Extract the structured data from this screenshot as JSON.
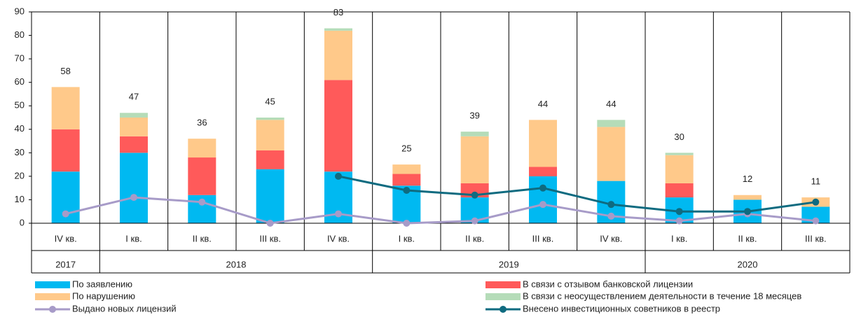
{
  "chart_data": {
    "type": "stacked_bar_line",
    "categories": [
      "IV кв.",
      "I кв.",
      "II кв.",
      "III кв.",
      "IV кв.",
      "I кв.",
      "II кв.",
      "III кв.",
      "IV кв.",
      "I кв.",
      "II кв.",
      "III кв."
    ],
    "category_groups": [
      {
        "label": "2017",
        "count": 1
      },
      {
        "label": "2018",
        "count": 4
      },
      {
        "label": "2019",
        "count": 4
      },
      {
        "label": "2020",
        "count": 3
      }
    ],
    "series": [
      {
        "name": "По заявлению",
        "color": "#00b9f1",
        "kind": "bar",
        "values": [
          22,
          30,
          12,
          23,
          22,
          16,
          11,
          20,
          18,
          11,
          10,
          7
        ]
      },
      {
        "name": "В связи с отзывом банковской лицензии",
        "color": "#ff5a5a",
        "kind": "bar",
        "values": [
          18,
          7,
          16,
          8,
          39,
          5,
          6,
          4,
          0,
          6,
          0,
          0
        ]
      },
      {
        "name": "По нарушению",
        "color": "#ffc98a",
        "kind": "bar",
        "values": [
          18,
          8,
          8,
          13,
          21,
          4,
          20,
          20,
          23,
          12,
          2,
          4
        ]
      },
      {
        "name": "В связи с неосуществлением деятельности в течение 18 месяцев",
        "color": "#b5dcb8",
        "kind": "bar",
        "values": [
          0,
          2,
          0,
          1,
          1,
          0,
          2,
          0,
          3,
          1,
          0,
          0
        ]
      },
      {
        "name": "Выдано новых лицензий",
        "color": "#a79bc8",
        "kind": "line",
        "values": [
          4,
          11,
          9,
          0,
          4,
          0,
          1,
          8,
          3,
          1,
          4,
          1
        ]
      },
      {
        "name": "Внесено инвестиционных советников в реестр",
        "color": "#0f6b80",
        "kind": "line",
        "values": [
          null,
          null,
          null,
          null,
          20,
          14,
          12,
          15,
          8,
          5,
          5,
          9
        ]
      }
    ],
    "totals": [
      58,
      47,
      36,
      45,
      83,
      25,
      39,
      44,
      44,
      30,
      12,
      11
    ],
    "ylim": [
      0,
      90
    ],
    "yticks": [
      0,
      10,
      20,
      30,
      40,
      50,
      60,
      70,
      80,
      90
    ]
  }
}
